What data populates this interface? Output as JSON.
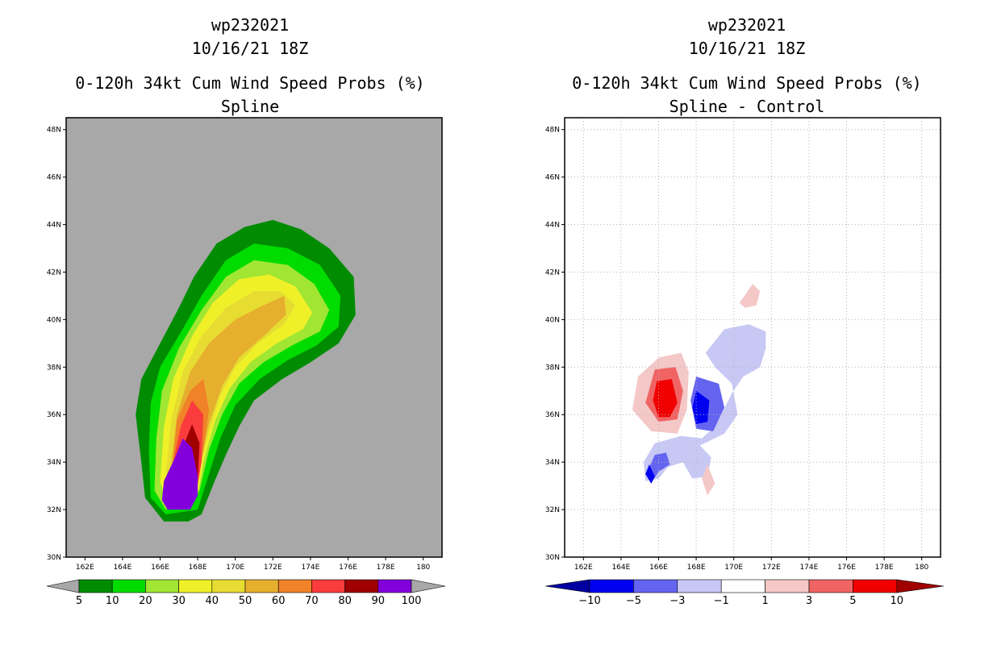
{
  "chart_data": [
    {
      "type": "heatmap",
      "storm": "wp232021",
      "datetime": "10/16/21 18Z",
      "title": "0-120h 34kt Cum Wind Speed Probs (%)",
      "subtitle": "Spline",
      "x_ticks": [
        "162E",
        "164E",
        "166E",
        "168E",
        "170E",
        "172E",
        "174E",
        "176E",
        "178E",
        "180"
      ],
      "y_ticks": [
        "30N",
        "32N",
        "34N",
        "36N",
        "38N",
        "40N",
        "42N",
        "44N",
        "46N",
        "48N"
      ],
      "xlim": [
        161,
        181
      ],
      "ylim": [
        30,
        48.5
      ],
      "background": "#a8a8a8",
      "colorbar": {
        "labels": [
          "5",
          "10",
          "20",
          "30",
          "40",
          "50",
          "60",
          "70",
          "80",
          "90",
          "100"
        ],
        "colors": [
          "#008c00",
          "#00dc00",
          "#a0e632",
          "#f0f028",
          "#e6dc32",
          "#e6af2d",
          "#f08228",
          "#fa3c3c",
          "#a00000",
          "#8200dc"
        ]
      },
      "contours": [
        {
          "level": 5,
          "color": "#008c00",
          "points": [
            [
              166.2,
              31.5
            ],
            [
              165.2,
              32.5
            ],
            [
              165.0,
              34.0
            ],
            [
              164.7,
              36.0
            ],
            [
              165.0,
              37.5
            ],
            [
              166.2,
              39.3
            ],
            [
              167.0,
              40.5
            ],
            [
              167.8,
              41.8
            ],
            [
              169.0,
              43.2
            ],
            [
              170.5,
              43.9
            ],
            [
              172.0,
              44.2
            ],
            [
              173.5,
              43.8
            ],
            [
              175.0,
              43.0
            ],
            [
              176.3,
              41.8
            ],
            [
              176.4,
              40.2
            ],
            [
              175.5,
              39.0
            ],
            [
              174.0,
              38.2
            ],
            [
              172.5,
              37.5
            ],
            [
              171.0,
              36.6
            ],
            [
              170.2,
              35.5
            ],
            [
              169.5,
              34.3
            ],
            [
              168.9,
              33.2
            ],
            [
              168.2,
              31.8
            ],
            [
              167.5,
              31.5
            ]
          ]
        },
        {
          "level": 10,
          "color": "#00dc00",
          "points": [
            [
              166.3,
              31.8
            ],
            [
              165.5,
              32.5
            ],
            [
              165.4,
              34.5
            ],
            [
              165.5,
              36.5
            ],
            [
              166.0,
              38.0
            ],
            [
              167.2,
              39.6
            ],
            [
              168.2,
              41.0
            ],
            [
              169.5,
              42.5
            ],
            [
              171.0,
              43.2
            ],
            [
              172.8,
              43.0
            ],
            [
              174.5,
              42.3
            ],
            [
              175.6,
              41.0
            ],
            [
              175.5,
              39.7
            ],
            [
              174.3,
              38.9
            ],
            [
              172.8,
              38.3
            ],
            [
              171.3,
              37.5
            ],
            [
              170.0,
              36.4
            ],
            [
              169.2,
              35.0
            ],
            [
              168.6,
              33.5
            ],
            [
              168.0,
              32.0
            ]
          ]
        },
        {
          "level": 20,
          "color": "#a0e632",
          "points": [
            [
              166.3,
              32.0
            ],
            [
              165.7,
              32.8
            ],
            [
              165.8,
              35.0
            ],
            [
              166.1,
              37.0
            ],
            [
              167.0,
              38.8
            ],
            [
              168.2,
              40.4
            ],
            [
              169.5,
              41.8
            ],
            [
              171.0,
              42.5
            ],
            [
              172.8,
              42.3
            ],
            [
              174.2,
              41.5
            ],
            [
              175.0,
              40.4
            ],
            [
              174.5,
              39.5
            ],
            [
              173.0,
              38.9
            ],
            [
              171.5,
              38.2
            ],
            [
              170.2,
              37.3
            ],
            [
              169.3,
              36.0
            ],
            [
              168.6,
              34.5
            ],
            [
              168.1,
              32.8
            ]
          ]
        },
        {
          "level": 30,
          "color": "#f0f028",
          "points": [
            [
              166.4,
              32.1
            ],
            [
              166.0,
              33.2
            ],
            [
              166.2,
              35.5
            ],
            [
              166.7,
              37.5
            ],
            [
              167.7,
              39.3
            ],
            [
              168.8,
              40.7
            ],
            [
              170.2,
              41.7
            ],
            [
              171.8,
              41.9
            ],
            [
              173.2,
              41.4
            ],
            [
              174.1,
              40.3
            ],
            [
              173.6,
              39.6
            ],
            [
              172.2,
              39.0
            ],
            [
              170.8,
              38.2
            ],
            [
              169.7,
              37.1
            ],
            [
              168.9,
              35.7
            ],
            [
              168.3,
              34.0
            ],
            [
              168.0,
              32.6
            ]
          ]
        },
        {
          "level": 40,
          "color": "#e6dc32",
          "points": [
            [
              166.6,
              32.3
            ],
            [
              166.3,
              33.5
            ],
            [
              166.6,
              35.8
            ],
            [
              167.2,
              37.8
            ],
            [
              168.2,
              39.3
            ],
            [
              169.5,
              40.5
            ],
            [
              171.0,
              41.2
            ],
            [
              172.4,
              41.2
            ],
            [
              173.2,
              40.6
            ],
            [
              172.6,
              39.8
            ],
            [
              171.2,
              39.0
            ],
            [
              170.0,
              38.0
            ],
            [
              169.2,
              36.8
            ],
            [
              168.5,
              35.0
            ],
            [
              168.0,
              33.2
            ]
          ]
        },
        {
          "level": 50,
          "color": "#e6af2d",
          "points": [
            [
              166.7,
              32.4
            ],
            [
              166.6,
              34.0
            ],
            [
              166.9,
              36.0
            ],
            [
              167.6,
              37.8
            ],
            [
              168.6,
              39.0
            ],
            [
              170.0,
              40.0
            ],
            [
              171.5,
              40.6
            ],
            [
              172.6,
              41.0
            ],
            [
              172.7,
              40.2
            ],
            [
              171.5,
              39.3
            ],
            [
              170.2,
              38.4
            ],
            [
              169.3,
              37.2
            ],
            [
              168.6,
              35.6
            ],
            [
              168.1,
              33.8
            ],
            [
              167.9,
              32.6
            ]
          ]
        },
        {
          "level": 60,
          "color": "#f08228",
          "points": [
            [
              166.8,
              32.5
            ],
            [
              166.7,
              34.2
            ],
            [
              166.9,
              35.8
            ],
            [
              167.6,
              37.0
            ],
            [
              168.3,
              37.5
            ],
            [
              168.6,
              36.2
            ],
            [
              168.3,
              34.5
            ],
            [
              167.9,
              32.8
            ]
          ]
        },
        {
          "level": 70,
          "color": "#fa3c3c",
          "points": [
            [
              166.8,
              32.4
            ],
            [
              166.7,
              34.0
            ],
            [
              167.1,
              35.5
            ],
            [
              167.7,
              36.6
            ],
            [
              168.3,
              36.0
            ],
            [
              168.2,
              34.0
            ],
            [
              167.9,
              32.6
            ]
          ]
        },
        {
          "level": 80,
          "color": "#a00000",
          "points": [
            [
              166.5,
              32.3
            ],
            [
              166.8,
              33.5
            ],
            [
              167.2,
              34.6
            ],
            [
              167.7,
              35.6
            ],
            [
              168.1,
              34.8
            ],
            [
              168.0,
              33.3
            ],
            [
              167.8,
              32.4
            ]
          ]
        },
        {
          "level": 100,
          "color": "#8200dc",
          "points": [
            [
              166.4,
              32.0
            ],
            [
              166.1,
              32.4
            ],
            [
              166.2,
              33.2
            ],
            [
              166.8,
              34.2
            ],
            [
              167.2,
              35.0
            ],
            [
              167.7,
              34.6
            ],
            [
              168.0,
              33.4
            ],
            [
              168.0,
              32.6
            ],
            [
              167.6,
              32.0
            ]
          ]
        }
      ]
    },
    {
      "type": "heatmap",
      "storm": "wp232021",
      "datetime": "10/16/21 18Z",
      "title": "0-120h 34kt Cum Wind Speed Probs (%)",
      "subtitle": "Spline - Control",
      "x_ticks": [
        "162E",
        "164E",
        "166E",
        "168E",
        "170E",
        "172E",
        "174E",
        "176E",
        "178E",
        "180"
      ],
      "y_ticks": [
        "30N",
        "32N",
        "34N",
        "36N",
        "38N",
        "40N",
        "42N",
        "44N",
        "46N",
        "48N"
      ],
      "xlim": [
        161,
        181
      ],
      "ylim": [
        30,
        48.5
      ],
      "background": "#ffffff",
      "grid": true,
      "colorbar": {
        "labels": [
          "-10",
          "-5",
          "-3",
          "-1",
          "1",
          "3",
          "5",
          "10"
        ],
        "colors": [
          "#0000a0",
          "#0000f0",
          "#6464f0",
          "#c8c8f5",
          "#ffffff",
          "#f5c8c8",
          "#f06464",
          "#f00000",
          "#a00000"
        ]
      },
      "contours": [
        {
          "level": -1,
          "color": "#c8c8f5",
          "points": [
            [
              168.5,
              38.6
            ],
            [
              169.5,
              39.6
            ],
            [
              170.8,
              39.8
            ],
            [
              171.7,
              39.5
            ],
            [
              171.7,
              38.8
            ],
            [
              171.4,
              38.0
            ],
            [
              170.5,
              37.6
            ],
            [
              169.9,
              36.9
            ],
            [
              169.0,
              35.5
            ],
            [
              168.3,
              35.0
            ],
            [
              167.2,
              35.1
            ],
            [
              165.8,
              34.8
            ],
            [
              165.2,
              34.0
            ],
            [
              165.3,
              33.2
            ],
            [
              166.0,
              33.3
            ],
            [
              166.5,
              33.8
            ],
            [
              167.3,
              34.0
            ],
            [
              167.8,
              33.3
            ],
            [
              168.6,
              33.4
            ],
            [
              168.8,
              34.2
            ],
            [
              168.2,
              34.7
            ],
            [
              169.5,
              35.2
            ],
            [
              170.2,
              36.0
            ],
            [
              169.9,
              37.3
            ],
            [
              169.0,
              38.0
            ]
          ]
        },
        {
          "level": -3,
          "color": "#6464f0",
          "points": [
            [
              168.0,
              37.6
            ],
            [
              169.2,
              37.3
            ],
            [
              169.5,
              36.3
            ],
            [
              168.9,
              35.3
            ],
            [
              168.0,
              35.4
            ],
            [
              167.7,
              36.6
            ]
          ]
        },
        {
          "level": -5,
          "color": "#0000f0",
          "points": [
            [
              168.0,
              37.0
            ],
            [
              168.7,
              36.6
            ],
            [
              168.6,
              35.7
            ],
            [
              168.0,
              35.6
            ],
            [
              167.8,
              36.3
            ]
          ]
        },
        {
          "level": -3,
          "color": "#6464f0",
          "points": [
            [
              165.8,
              34.3
            ],
            [
              166.4,
              34.4
            ],
            [
              166.6,
              33.9
            ],
            [
              166.0,
              33.6
            ],
            [
              165.6,
              33.1
            ],
            [
              165.4,
              33.6
            ]
          ]
        },
        {
          "level": -5,
          "color": "#0000f0",
          "points": [
            [
              165.5,
              33.9
            ],
            [
              165.8,
              33.4
            ],
            [
              165.6,
              33.1
            ],
            [
              165.3,
              33.5
            ]
          ]
        },
        {
          "level": 1,
          "color": "#f5c8c8",
          "points": [
            [
              166.0,
              38.4
            ],
            [
              167.2,
              38.6
            ],
            [
              167.6,
              37.8
            ],
            [
              167.5,
              36.2
            ],
            [
              167.0,
              35.2
            ],
            [
              165.6,
              35.3
            ],
            [
              164.6,
              36.2
            ],
            [
              164.9,
              37.6
            ]
          ]
        },
        {
          "level": 3,
          "color": "#f06464",
          "points": [
            [
              165.8,
              37.9
            ],
            [
              166.9,
              38.0
            ],
            [
              167.3,
              37.0
            ],
            [
              167.0,
              35.8
            ],
            [
              166.0,
              35.7
            ],
            [
              165.3,
              36.5
            ]
          ]
        },
        {
          "level": 5,
          "color": "#f00000",
          "points": [
            [
              165.9,
              37.4
            ],
            [
              166.7,
              37.5
            ],
            [
              167.0,
              36.5
            ],
            [
              166.6,
              35.9
            ],
            [
              166.0,
              35.9
            ],
            [
              165.7,
              36.6
            ]
          ]
        },
        {
          "level": 1,
          "color": "#f5c8c8",
          "points": [
            [
              170.3,
              40.7
            ],
            [
              171.0,
              41.5
            ],
            [
              171.4,
              41.2
            ],
            [
              171.2,
              40.6
            ],
            [
              170.6,
              40.5
            ]
          ]
        },
        {
          "level": 1,
          "color": "#f5c8c8",
          "points": [
            [
              168.3,
              33.3
            ],
            [
              168.6,
              33.9
            ],
            [
              169.0,
              33.1
            ],
            [
              168.6,
              32.6
            ]
          ]
        }
      ]
    }
  ]
}
